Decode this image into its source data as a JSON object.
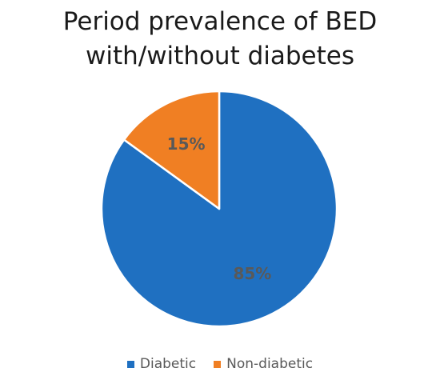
{
  "chart_data": {
    "type": "pie",
    "title": "Period prevalence of BED with/without diabetes",
    "slices": [
      {
        "name": "Diabetic",
        "value": 85,
        "label": "85%",
        "color": "#1f70c1",
        "label_color": "#595959"
      },
      {
        "name": "Non-diabetic",
        "value": 15,
        "label": "15%",
        "color": "#f07f23",
        "label_color": "#595959"
      }
    ],
    "start_angle": "12 o'clock",
    "direction": "clockwise",
    "slice_border_color": "#ffffff",
    "legend": {
      "position": "bottom",
      "items": [
        {
          "label": "Diabetic",
          "color": "#1f70c1"
        },
        {
          "label": "Non-diabetic",
          "color": "#f07f23"
        }
      ]
    }
  }
}
